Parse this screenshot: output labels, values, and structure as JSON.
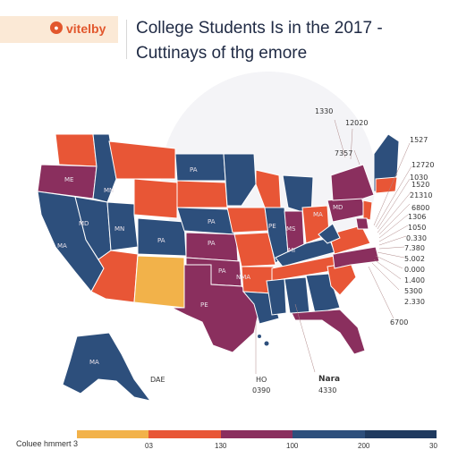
{
  "header": {
    "logo_text": "vitelby",
    "title_line1": "College Students Is in the 2017 -",
    "title_line2": "Cuttinays of thg emore"
  },
  "colors": {
    "red": "#e85636",
    "purple": "#8a2f5e",
    "blue": "#2d4f7c",
    "yellow": "#f2b24a",
    "navy": "#1f3a5f"
  },
  "state_labels": [
    "ME",
    "MD",
    "MA",
    "MN",
    "MN",
    "PA",
    "PA",
    "PA",
    "PA",
    "PA",
    "PE",
    "PE",
    "MS",
    "MI",
    "MD",
    "MA",
    "MA",
    "NMA"
  ],
  "right_labels": [
    "1330",
    "12020",
    "7357",
    "1527",
    "12720",
    "1030",
    "1520",
    "21310",
    "6800",
    "1306",
    "1050",
    "0.330",
    "7.380",
    "5.002",
    "0.000",
    "1.400",
    "5300",
    "2.330",
    "6700"
  ],
  "bottom_labels": {
    "ak_label": "DAE",
    "left_bottom_1": "HO",
    "left_bottom_2": "0390",
    "right_bottom_1": "Nara",
    "right_bottom_2": "4330"
  },
  "legend": {
    "title": "Coluee hmmert 3",
    "ticks": [
      "03",
      "130",
      "100",
      "200",
      "30"
    ],
    "colors": [
      "#f2b24a",
      "#e85636",
      "#8a2f5e",
      "#2d4f7c",
      "#1f3a5f"
    ]
  }
}
